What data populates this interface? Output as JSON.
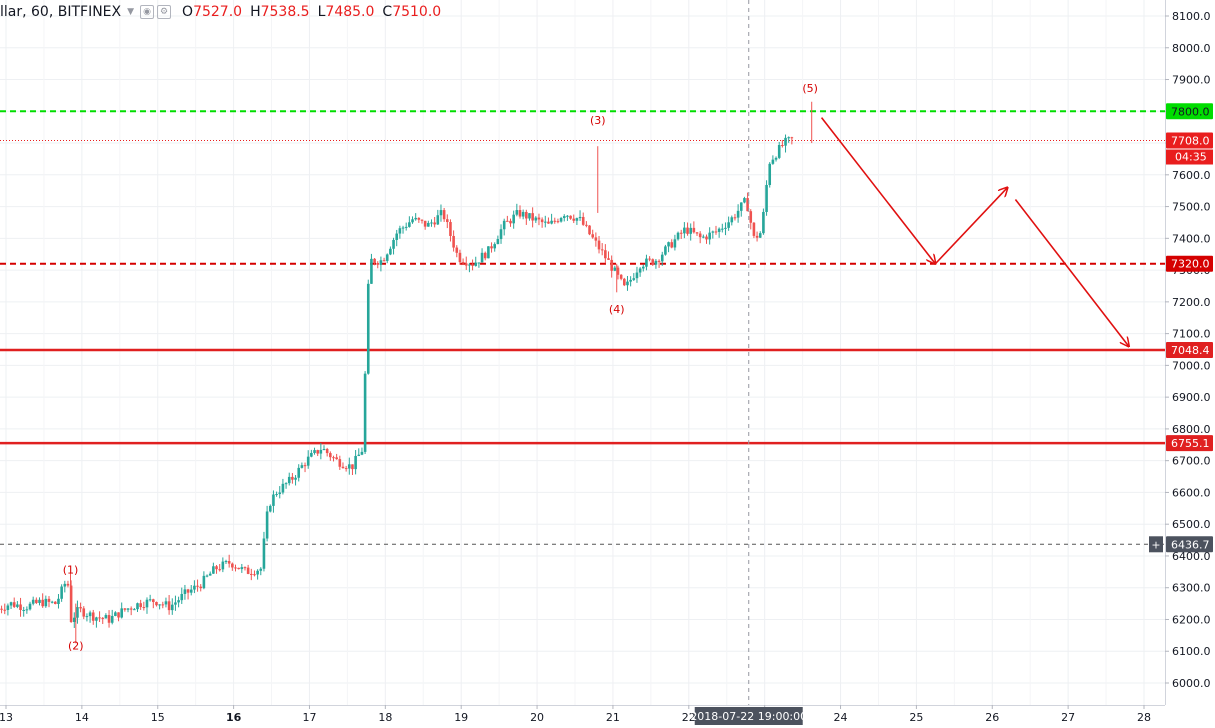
{
  "header": {
    "symbol": "llar, 60, BITFINEX",
    "open_key": "O",
    "open": "7527.0",
    "high_key": "H",
    "high": "7538.5",
    "low_key": "L",
    "low": "7485.0",
    "close_key": "C",
    "close": "7510.0",
    "icons": [
      "chevron-down-icon",
      "eye-icon",
      "settings-icon"
    ]
  },
  "chart_data": {
    "type": "candlestick",
    "y_axis": {
      "range": [
        5950,
        8130
      ],
      "ticks": [
        "6000.0",
        "6100.0",
        "6200.0",
        "6300.0",
        "6400.0",
        "6500.0",
        "6600.0",
        "6700.0",
        "6800.0",
        "6900.0",
        "7000.0",
        "7100.0",
        "7200.0",
        "7300.0",
        "7400.0",
        "7500.0",
        "7600.0",
        "7700.0",
        "7800.0",
        "7900.0",
        "8000.0",
        "8100.0"
      ]
    },
    "x_axis": {
      "ticks": [
        {
          "label": "13",
          "day": 13,
          "bold": false
        },
        {
          "label": "14",
          "day": 14,
          "bold": false
        },
        {
          "label": "15",
          "day": 15,
          "bold": false
        },
        {
          "label": "16",
          "day": 16,
          "bold": true
        },
        {
          "label": "17",
          "day": 17,
          "bold": false
        },
        {
          "label": "18",
          "day": 18,
          "bold": false
        },
        {
          "label": "19",
          "day": 19,
          "bold": false
        },
        {
          "label": "20",
          "day": 20,
          "bold": false
        },
        {
          "label": "21",
          "day": 21,
          "bold": false
        },
        {
          "label": "22",
          "day": 22,
          "bold": false
        },
        {
          "label": "23",
          "day": 23,
          "bold": false
        },
        {
          "label": "24",
          "day": 24,
          "bold": false
        },
        {
          "label": "25",
          "day": 25,
          "bold": false
        },
        {
          "label": "26",
          "day": 26,
          "bold": false
        },
        {
          "label": "27",
          "day": 27,
          "bold": false
        },
        {
          "label": "28",
          "day": 28,
          "bold": false
        }
      ],
      "crosshair_label": "2018-07-22 19:00:00",
      "crosshair_day": 22.79
    },
    "price_path": [
      [
        12.9,
        6230
      ],
      [
        13.1,
        6250
      ],
      [
        13.3,
        6240
      ],
      [
        13.5,
        6255
      ],
      [
        13.7,
        6250
      ],
      [
        13.85,
        6330
      ],
      [
        13.9,
        6200
      ],
      [
        14.0,
        6230
      ],
      [
        14.2,
        6210
      ],
      [
        14.4,
        6200
      ],
      [
        14.6,
        6230
      ],
      [
        14.8,
        6250
      ],
      [
        15.0,
        6260
      ],
      [
        15.2,
        6240
      ],
      [
        15.4,
        6280
      ],
      [
        15.6,
        6310
      ],
      [
        15.8,
        6360
      ],
      [
        16.0,
        6380
      ],
      [
        16.2,
        6350
      ],
      [
        16.4,
        6360
      ],
      [
        16.5,
        6560
      ],
      [
        16.6,
        6600
      ],
      [
        16.8,
        6640
      ],
      [
        17.0,
        6700
      ],
      [
        17.2,
        6740
      ],
      [
        17.4,
        6700
      ],
      [
        17.6,
        6680
      ],
      [
        17.75,
        6740
      ],
      [
        17.8,
        7200
      ],
      [
        17.85,
        7330
      ],
      [
        18.0,
        7330
      ],
      [
        18.2,
        7420
      ],
      [
        18.4,
        7460
      ],
      [
        18.6,
        7440
      ],
      [
        18.8,
        7480
      ],
      [
        19.0,
        7340
      ],
      [
        19.2,
        7320
      ],
      [
        19.4,
        7360
      ],
      [
        19.6,
        7440
      ],
      [
        19.8,
        7480
      ],
      [
        20.0,
        7460
      ],
      [
        20.2,
        7440
      ],
      [
        20.4,
        7480
      ],
      [
        20.6,
        7460
      ],
      [
        20.8,
        7390
      ],
      [
        21.0,
        7320
      ],
      [
        21.2,
        7240
      ],
      [
        21.4,
        7320
      ],
      [
        21.6,
        7330
      ],
      [
        21.8,
        7380
      ],
      [
        22.0,
        7430
      ],
      [
        22.2,
        7400
      ],
      [
        22.4,
        7420
      ],
      [
        22.6,
        7460
      ],
      [
        22.8,
        7520
      ],
      [
        22.9,
        7400
      ],
      [
        23.0,
        7420
      ],
      [
        23.1,
        7640
      ],
      [
        23.3,
        7700
      ],
      [
        23.4,
        7710
      ]
    ],
    "candle_params": {
      "day_start": 12.9,
      "day_end": 23.4,
      "hours_per_candle": 1,
      "seed": 7
    },
    "annotations": [
      {
        "label": "(1)",
        "day": 13.85,
        "price": 6345
      },
      {
        "label": "(2)",
        "day": 13.92,
        "price": 6105
      },
      {
        "label": "(3)",
        "day": 20.8,
        "price": 7760
      },
      {
        "label": "(4)",
        "day": 21.05,
        "price": 7165
      },
      {
        "label": "(5)",
        "day": 23.6,
        "price": 7860
      }
    ],
    "horizontal_levels": [
      {
        "price": 7800.0,
        "label": "7800.0",
        "color": "#00dd00",
        "style": "dashed",
        "width": 2,
        "tag_text_color": "#131722"
      },
      {
        "price": 7708.0,
        "label": "7708.0",
        "color": "#e91e1e",
        "style": "dotted",
        "width": 1,
        "tag_text_color": "#ffffff"
      },
      {
        "price": 7320.0,
        "label": "7320.0",
        "color": "#d50000",
        "style": "dashed",
        "width": 2,
        "tag_text_color": "#ffffff"
      },
      {
        "price": 7048.4,
        "label": "7048.4",
        "color": "#e02020",
        "style": "solid",
        "width": 2.5,
        "tag_text_color": "#ffffff"
      },
      {
        "price": 6755.1,
        "label": "6755.1",
        "color": "#e02020",
        "style": "solid",
        "width": 2.5,
        "tag_text_color": "#ffffff"
      },
      {
        "price": 6436.7,
        "label": "6436.7",
        "color": "#555555",
        "style": "dashed",
        "width": 1,
        "tag_text_color": "#ffffff"
      }
    ],
    "countdown_label": "04:35",
    "projection_path": [
      [
        23.75,
        7780
      ],
      [
        25.25,
        7320
      ],
      [
        26.2,
        7560
      ],
      [
        27.8,
        7060
      ]
    ],
    "colors": {
      "up": "#26a69a",
      "down": "#ef5350",
      "grid": "#eef0f3",
      "projection": "#e01010"
    }
  }
}
